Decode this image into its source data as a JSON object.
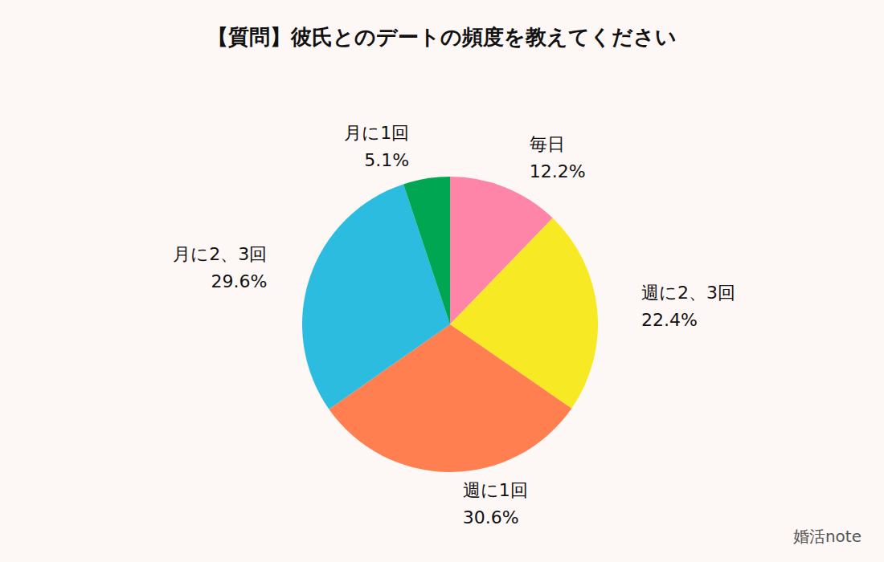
{
  "chart_data": {
    "type": "pie",
    "title": "【質問】彼氏とのデートの頻度を教えてください",
    "categories": [
      "毎日",
      "週に2、3回",
      "週に1回",
      "月に2、3回",
      "月に1回"
    ],
    "values": [
      12.2,
      22.4,
      30.6,
      29.6,
      5.1
    ],
    "value_labels": [
      "12.2%",
      "22.4%",
      "30.6%",
      "29.6%",
      "5.1%"
    ],
    "colors": [
      "#ff85a8",
      "#f7ea25",
      "#ff7f50",
      "#2bbce0",
      "#00a651"
    ],
    "data_labels": true,
    "source": "婚活note"
  }
}
